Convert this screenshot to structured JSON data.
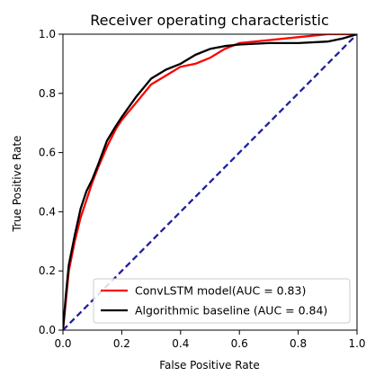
{
  "chart_data": {
    "type": "line",
    "title": "Receiver operating characteristic",
    "xlabel": "False Positive Rate",
    "ylabel": "True Positive Rate",
    "xlim": [
      0.0,
      1.0
    ],
    "ylim": [
      0.0,
      1.0
    ],
    "x_ticks": [
      "0.0",
      "0.2",
      "0.4",
      "0.6",
      "0.8",
      "1.0"
    ],
    "y_ticks": [
      "0.0",
      "0.2",
      "0.4",
      "0.6",
      "0.8",
      "1.0"
    ],
    "grid": false,
    "legend_position": "lower-right",
    "series": [
      {
        "name": "ConvLSTM model(AUC = 0.83)",
        "color": "#ff0000",
        "style": "solid",
        "x": [
          0.0,
          0.01,
          0.02,
          0.04,
          0.06,
          0.08,
          0.1,
          0.12,
          0.15,
          0.18,
          0.2,
          0.25,
          0.3,
          0.35,
          0.4,
          0.45,
          0.5,
          0.55,
          0.6,
          0.7,
          0.8,
          0.9,
          1.0
        ],
        "y": [
          0.0,
          0.1,
          0.2,
          0.3,
          0.38,
          0.44,
          0.5,
          0.55,
          0.62,
          0.68,
          0.71,
          0.77,
          0.83,
          0.86,
          0.89,
          0.9,
          0.92,
          0.95,
          0.97,
          0.98,
          0.99,
          1.0,
          1.0
        ]
      },
      {
        "name": "Algorithmic baseline (AUC = 0.84)",
        "color": "#000000",
        "style": "solid",
        "x": [
          0.0,
          0.01,
          0.02,
          0.04,
          0.06,
          0.08,
          0.1,
          0.12,
          0.15,
          0.18,
          0.2,
          0.25,
          0.3,
          0.35,
          0.4,
          0.45,
          0.5,
          0.55,
          0.6,
          0.7,
          0.8,
          0.9,
          0.95,
          1.0
        ],
        "y": [
          0.0,
          0.12,
          0.22,
          0.32,
          0.41,
          0.47,
          0.51,
          0.56,
          0.64,
          0.69,
          0.72,
          0.79,
          0.85,
          0.88,
          0.9,
          0.93,
          0.95,
          0.96,
          0.965,
          0.97,
          0.97,
          0.975,
          0.985,
          1.0
        ]
      },
      {
        "name": "",
        "color": "#1f1fa0",
        "style": "dashed",
        "x": [
          0.0,
          1.0
        ],
        "y": [
          0.0,
          1.0
        ]
      }
    ]
  }
}
